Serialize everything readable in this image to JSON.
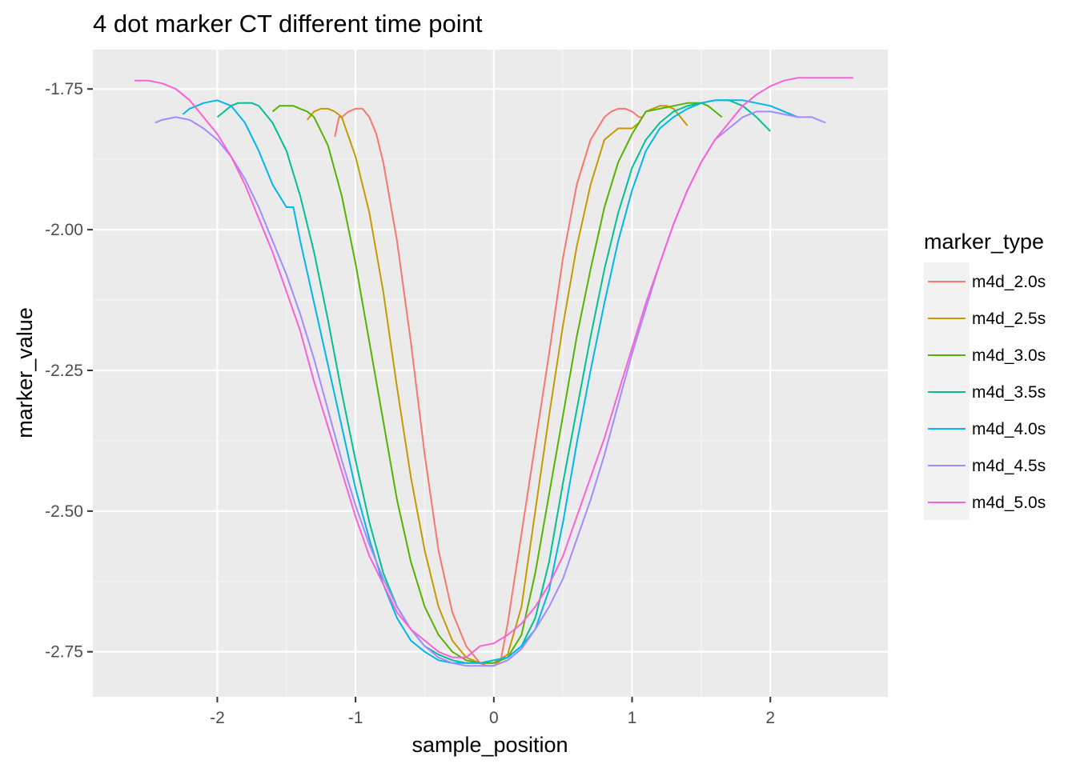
{
  "chart_data": {
    "type": "line",
    "title": "4 dot marker CT different time point",
    "xlabel": "sample_position",
    "ylabel": "marker_value",
    "xlim": [
      -2.9,
      2.85
    ],
    "ylim": [
      -2.83,
      -1.68
    ],
    "x_ticks": [
      -2,
      -1,
      0,
      1,
      2
    ],
    "x_tick_labels": [
      "-2",
      "-1",
      "0",
      "1",
      "2"
    ],
    "y_ticks": [
      -2.75,
      -2.5,
      -2.25,
      -2.0,
      -1.75
    ],
    "y_tick_labels": [
      "-2.75",
      "-2.50",
      "-2.25",
      "-2.00",
      "-1.75"
    ],
    "grid": true,
    "legend": {
      "title": "marker_type",
      "placement": "right"
    },
    "series": [
      {
        "name": "m4d_2.0s",
        "color": "#F8766D",
        "x": [
          -1.15,
          -1.12,
          -1.1,
          -1.05,
          -1.0,
          -0.95,
          -0.9,
          -0.85,
          -0.8,
          -0.7,
          -0.6,
          -0.5,
          -0.4,
          -0.3,
          -0.2,
          -0.1,
          -0.05,
          0.0,
          0.05,
          0.1,
          0.2,
          0.3,
          0.4,
          0.5,
          0.6,
          0.7,
          0.8,
          0.85,
          0.9,
          0.95,
          1.0,
          1.05,
          1.08
        ],
        "y": [
          -1.835,
          -1.8,
          -1.8,
          -1.79,
          -1.785,
          -1.785,
          -1.8,
          -1.83,
          -1.88,
          -2.02,
          -2.2,
          -2.4,
          -2.57,
          -2.68,
          -2.74,
          -2.77,
          -2.775,
          -2.775,
          -2.765,
          -2.7,
          -2.54,
          -2.38,
          -2.22,
          -2.05,
          -1.92,
          -1.84,
          -1.8,
          -1.79,
          -1.785,
          -1.785,
          -1.79,
          -1.8,
          -1.8
        ]
      },
      {
        "name": "m4d_2.5s",
        "color": "#C49A00",
        "x": [
          -1.35,
          -1.3,
          -1.25,
          -1.2,
          -1.15,
          -1.1,
          -1.0,
          -0.9,
          -0.8,
          -0.7,
          -0.6,
          -0.5,
          -0.4,
          -0.3,
          -0.2,
          -0.1,
          0.0,
          0.1,
          0.2,
          0.3,
          0.4,
          0.5,
          0.6,
          0.7,
          0.8,
          0.9,
          1.0,
          1.05,
          1.1,
          1.15,
          1.2,
          1.25,
          1.3,
          1.35,
          1.4
        ],
        "y": [
          -1.805,
          -1.79,
          -1.785,
          -1.785,
          -1.79,
          -1.8,
          -1.87,
          -1.97,
          -2.11,
          -2.28,
          -2.44,
          -2.57,
          -2.67,
          -2.73,
          -2.76,
          -2.77,
          -2.77,
          -2.755,
          -2.67,
          -2.5,
          -2.33,
          -2.17,
          -2.03,
          -1.92,
          -1.84,
          -1.82,
          -1.82,
          -1.81,
          -1.79,
          -1.785,
          -1.78,
          -1.78,
          -1.785,
          -1.8,
          -1.815
        ]
      },
      {
        "name": "m4d_3.0s",
        "color": "#53B400",
        "x": [
          -1.6,
          -1.55,
          -1.5,
          -1.45,
          -1.4,
          -1.35,
          -1.3,
          -1.2,
          -1.1,
          -1.0,
          -0.9,
          -0.8,
          -0.7,
          -0.6,
          -0.5,
          -0.4,
          -0.3,
          -0.2,
          -0.1,
          0.0,
          0.1,
          0.2,
          0.3,
          0.4,
          0.5,
          0.6,
          0.7,
          0.8,
          0.9,
          1.0,
          1.1,
          1.2,
          1.3,
          1.4,
          1.5,
          1.55,
          1.6,
          1.65
        ],
        "y": [
          -1.79,
          -1.78,
          -1.78,
          -1.78,
          -1.785,
          -1.79,
          -1.8,
          -1.85,
          -1.94,
          -2.06,
          -2.2,
          -2.34,
          -2.48,
          -2.59,
          -2.67,
          -2.72,
          -2.75,
          -2.765,
          -2.77,
          -2.77,
          -2.76,
          -2.72,
          -2.61,
          -2.47,
          -2.33,
          -2.19,
          -2.07,
          -1.96,
          -1.88,
          -1.83,
          -1.79,
          -1.785,
          -1.78,
          -1.775,
          -1.775,
          -1.78,
          -1.79,
          -1.8
        ]
      },
      {
        "name": "m4d_3.5s",
        "color": "#00C094",
        "x": [
          -2.0,
          -1.95,
          -1.9,
          -1.85,
          -1.8,
          -1.75,
          -1.7,
          -1.6,
          -1.5,
          -1.4,
          -1.3,
          -1.2,
          -1.1,
          -1.0,
          -0.9,
          -0.8,
          -0.7,
          -0.6,
          -0.5,
          -0.4,
          -0.3,
          -0.2,
          -0.1,
          0.0,
          0.1,
          0.2,
          0.3,
          0.4,
          0.5,
          0.6,
          0.7,
          0.8,
          0.9,
          1.0,
          1.1,
          1.2,
          1.3,
          1.4,
          1.5,
          1.6,
          1.7,
          1.75,
          1.8,
          1.9,
          2.0
        ],
        "y": [
          -1.8,
          -1.79,
          -1.78,
          -1.775,
          -1.775,
          -1.775,
          -1.78,
          -1.81,
          -1.86,
          -1.94,
          -2.04,
          -2.16,
          -2.29,
          -2.41,
          -2.52,
          -2.61,
          -2.67,
          -2.71,
          -2.74,
          -2.755,
          -2.765,
          -2.77,
          -2.77,
          -2.765,
          -2.76,
          -2.74,
          -2.69,
          -2.59,
          -2.45,
          -2.32,
          -2.19,
          -2.07,
          -1.97,
          -1.89,
          -1.84,
          -1.81,
          -1.79,
          -1.78,
          -1.775,
          -1.77,
          -1.77,
          -1.775,
          -1.78,
          -1.8,
          -1.825
        ]
      },
      {
        "name": "m4d_4.0s",
        "color": "#00B6EB",
        "x": [
          -2.25,
          -2.2,
          -2.1,
          -2.0,
          -1.9,
          -1.8,
          -1.7,
          -1.6,
          -1.5,
          -1.45,
          -1.4,
          -1.3,
          -1.2,
          -1.1,
          -1.0,
          -0.9,
          -0.8,
          -0.7,
          -0.6,
          -0.5,
          -0.4,
          -0.3,
          -0.2,
          -0.1,
          0.0,
          0.1,
          0.2,
          0.3,
          0.4,
          0.5,
          0.6,
          0.7,
          0.8,
          0.9,
          1.0,
          1.1,
          1.2,
          1.3,
          1.4,
          1.5,
          1.6,
          1.7,
          1.8,
          1.9,
          2.0,
          2.1,
          2.2
        ],
        "y": [
          -1.795,
          -1.785,
          -1.775,
          -1.77,
          -1.78,
          -1.81,
          -1.86,
          -1.92,
          -1.96,
          -1.96,
          -2.02,
          -2.13,
          -2.24,
          -2.35,
          -2.46,
          -2.55,
          -2.63,
          -2.69,
          -2.73,
          -2.75,
          -2.765,
          -2.77,
          -2.77,
          -2.77,
          -2.765,
          -2.76,
          -2.74,
          -2.71,
          -2.64,
          -2.52,
          -2.38,
          -2.25,
          -2.13,
          -2.02,
          -1.93,
          -1.86,
          -1.82,
          -1.8,
          -1.785,
          -1.775,
          -1.77,
          -1.77,
          -1.77,
          -1.775,
          -1.78,
          -1.79,
          -1.8
        ]
      },
      {
        "name": "m4d_4.5s",
        "color": "#A58AFF",
        "x": [
          -2.45,
          -2.4,
          -2.3,
          -2.2,
          -2.1,
          -2.0,
          -1.9,
          -1.8,
          -1.7,
          -1.6,
          -1.5,
          -1.4,
          -1.3,
          -1.2,
          -1.1,
          -1.0,
          -0.9,
          -0.8,
          -0.7,
          -0.6,
          -0.5,
          -0.4,
          -0.3,
          -0.2,
          -0.1,
          0.0,
          0.1,
          0.2,
          0.3,
          0.4,
          0.5,
          0.6,
          0.7,
          0.8,
          0.9,
          1.0,
          1.1,
          1.2,
          1.3,
          1.4,
          1.5,
          1.6,
          1.7,
          1.8,
          1.9,
          2.0,
          2.1,
          2.2,
          2.3,
          2.4
        ],
        "y": [
          -1.81,
          -1.805,
          -1.8,
          -1.805,
          -1.82,
          -1.84,
          -1.87,
          -1.91,
          -1.96,
          -2.02,
          -2.08,
          -2.15,
          -2.23,
          -2.32,
          -2.41,
          -2.49,
          -2.56,
          -2.62,
          -2.67,
          -2.71,
          -2.74,
          -2.76,
          -2.77,
          -2.775,
          -2.775,
          -2.775,
          -2.765,
          -2.745,
          -2.71,
          -2.67,
          -2.62,
          -2.55,
          -2.48,
          -2.4,
          -2.31,
          -2.22,
          -2.14,
          -2.06,
          -1.99,
          -1.93,
          -1.88,
          -1.84,
          -1.82,
          -1.8,
          -1.79,
          -1.79,
          -1.795,
          -1.8,
          -1.8,
          -1.81
        ]
      },
      {
        "name": "m4d_5.0s",
        "color": "#FB61D7",
        "x": [
          -2.6,
          -2.5,
          -2.4,
          -2.3,
          -2.2,
          -2.1,
          -2.0,
          -1.9,
          -1.8,
          -1.7,
          -1.6,
          -1.5,
          -1.4,
          -1.3,
          -1.2,
          -1.1,
          -1.0,
          -0.9,
          -0.8,
          -0.7,
          -0.6,
          -0.5,
          -0.4,
          -0.3,
          -0.2,
          -0.1,
          0.0,
          0.1,
          0.2,
          0.3,
          0.4,
          0.5,
          0.6,
          0.7,
          0.8,
          0.9,
          1.0,
          1.1,
          1.2,
          1.3,
          1.4,
          1.5,
          1.6,
          1.7,
          1.8,
          1.9,
          2.0,
          2.1,
          2.2,
          2.3,
          2.4,
          2.5,
          2.6
        ],
        "y": [
          -1.735,
          -1.735,
          -1.74,
          -1.75,
          -1.77,
          -1.8,
          -1.83,
          -1.87,
          -1.92,
          -1.98,
          -2.04,
          -2.11,
          -2.18,
          -2.27,
          -2.35,
          -2.43,
          -2.51,
          -2.58,
          -2.63,
          -2.68,
          -2.71,
          -2.73,
          -2.75,
          -2.76,
          -2.76,
          -2.74,
          -2.735,
          -2.72,
          -2.7,
          -2.67,
          -2.63,
          -2.58,
          -2.51,
          -2.44,
          -2.37,
          -2.29,
          -2.21,
          -2.13,
          -2.06,
          -1.99,
          -1.93,
          -1.88,
          -1.84,
          -1.81,
          -1.78,
          -1.76,
          -1.745,
          -1.735,
          -1.73,
          -1.73,
          -1.73,
          -1.73,
          -1.73
        ]
      }
    ]
  }
}
